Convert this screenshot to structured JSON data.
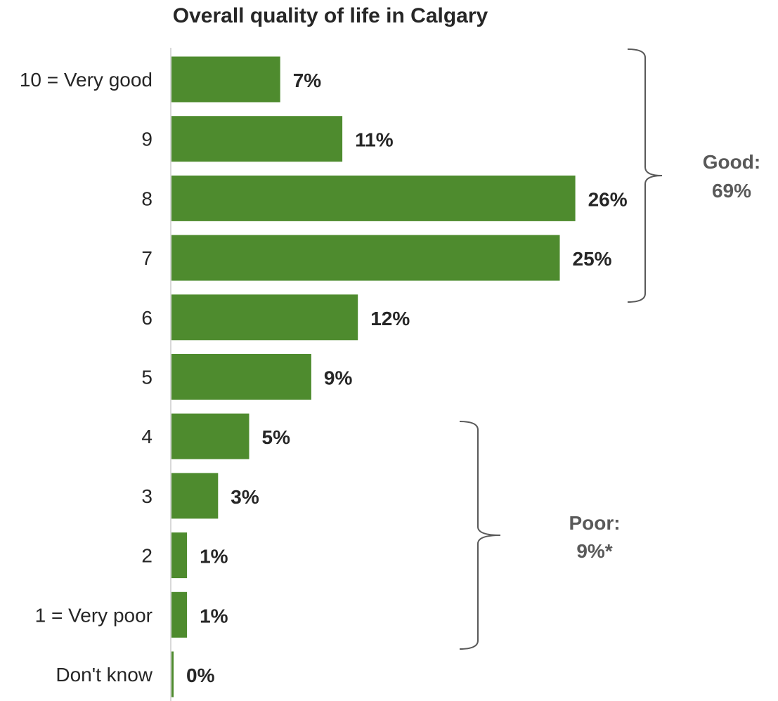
{
  "chart_data": {
    "type": "bar",
    "orientation": "horizontal",
    "title": "Overall quality of life in Calgary",
    "categories": [
      "10 = Very good",
      "9",
      "8",
      "7",
      "6",
      "5",
      "4",
      "3",
      "2",
      "1 = Very poor",
      "Don't know"
    ],
    "values": [
      7,
      11,
      26,
      25,
      12,
      9,
      5,
      3,
      1,
      1,
      0
    ],
    "value_labels": [
      "7%",
      "11%",
      "26%",
      "25%",
      "12%",
      "9%",
      "5%",
      "3%",
      "1%",
      "1%",
      "0%"
    ],
    "xlim": [
      0,
      30
    ],
    "grid": false,
    "annotations": [
      {
        "name": "good",
        "line1": "Good:",
        "line2": "69%",
        "from_category": "10 = Very good",
        "to_category": "7"
      },
      {
        "name": "poor",
        "line1": "Poor:",
        "line2": "9%*",
        "from_category": "4",
        "to_category": "1 = Very poor"
      }
    ]
  },
  "colors": {
    "bar": "#4E8B2E",
    "axis": "#D9D9D9",
    "text": "#262626",
    "bracket": "#595959",
    "group_label": "#595959"
  }
}
